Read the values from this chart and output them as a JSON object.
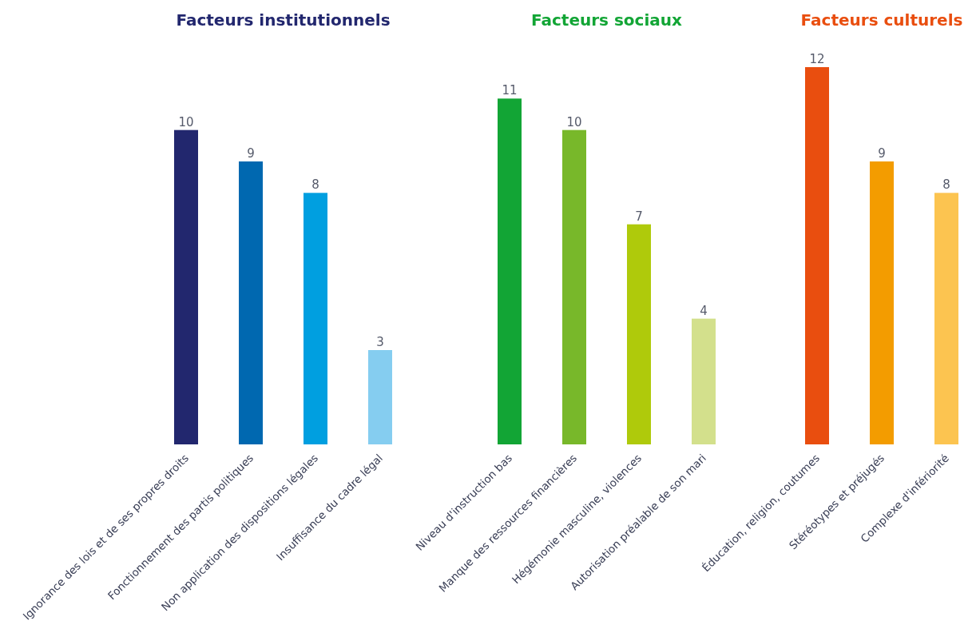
{
  "chart_data": [
    {
      "type": "bar",
      "title": "Facteurs institutionnels",
      "categories": [
        "Ignorance des lois et de ses propres droits",
        "Fonctionnement des partis politiques",
        "Non application des dispositions légales",
        "Insuffisance du cadre légal"
      ],
      "values": [
        10,
        9,
        8,
        3
      ],
      "colors": [
        "#22276e",
        "#0068b0",
        "#009fe0",
        "#85cdf0"
      ],
      "data_labels": true,
      "tick_labels": "x"
    },
    {
      "type": "bar",
      "title": "Facteurs sociaux",
      "categories": [
        "Niveau d'instruction bas",
        "Manque des ressources financières",
        "Hégémonie masculine, violences",
        "Autorisation préalable de son mari"
      ],
      "values": [
        11,
        10,
        7,
        4
      ],
      "colors": [
        "#12a535",
        "#78b82a",
        "#afca0b",
        "#d3e08c"
      ],
      "data_labels": true,
      "tick_labels": "x"
    },
    {
      "type": "bar",
      "title": "Facteurs culturels",
      "categories": [
        "Éducation, religion, coutumes",
        "Stéréotypes et préjugés",
        "Complexe d'infériorité"
      ],
      "values": [
        12,
        9,
        8
      ],
      "colors": [
        "#e94e0f",
        "#f39c00",
        "#fcc450"
      ],
      "data_labels": true,
      "tick_labels": "x"
    }
  ]
}
